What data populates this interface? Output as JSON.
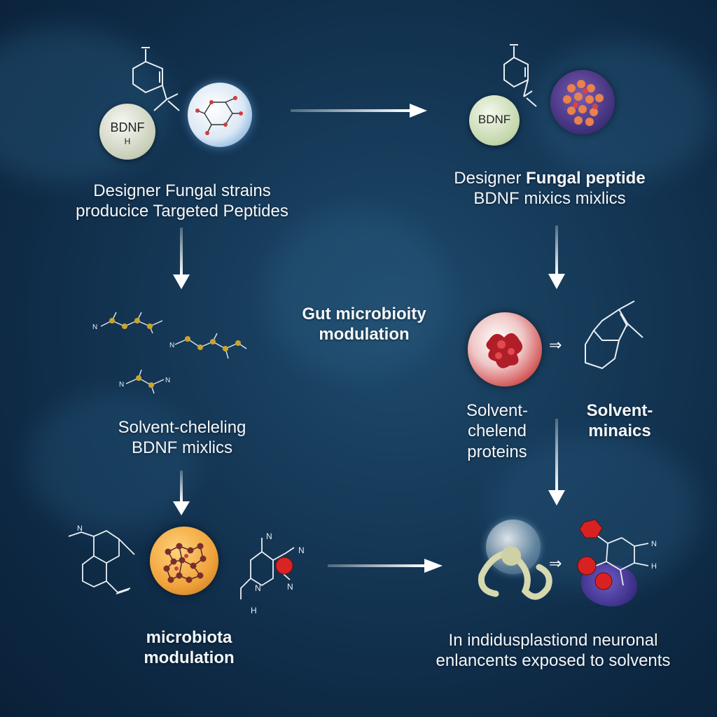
{
  "nodes": {
    "top_left": {
      "badge_main": "BDNF",
      "badge_sub": "H",
      "label_line1": "Designer Fungal strains",
      "label_line2": "producice Targeted Peptides"
    },
    "top_right": {
      "badge_main": "BDNF",
      "label_line1_pre": "Designer ",
      "label_line1_bold": "Fungal peptide",
      "label_line2": "BDNF mixics mixlics"
    },
    "center": {
      "label_line1": "Gut microbioity",
      "label_line2": "modulation"
    },
    "mid_left": {
      "label_line1": "Solvent-cheleling",
      "label_line2": "BDNF mixlics"
    },
    "mid_right_a": {
      "label_line1": "Solvent-",
      "label_line2": "chelend",
      "label_line3": "proteins"
    },
    "mid_right_b": {
      "label_line1": "Solvent-",
      "label_line2": "minaics"
    },
    "bottom_left": {
      "label_line1": "microbiota",
      "label_line2": "modulation"
    },
    "bottom_right": {
      "label_line1": "In indidusplastiond neuronal",
      "label_line2": "enlancents exposed to solvents"
    }
  },
  "molecule_glyphs": {
    "n": "N",
    "h": "H",
    "implies": "⇒"
  }
}
